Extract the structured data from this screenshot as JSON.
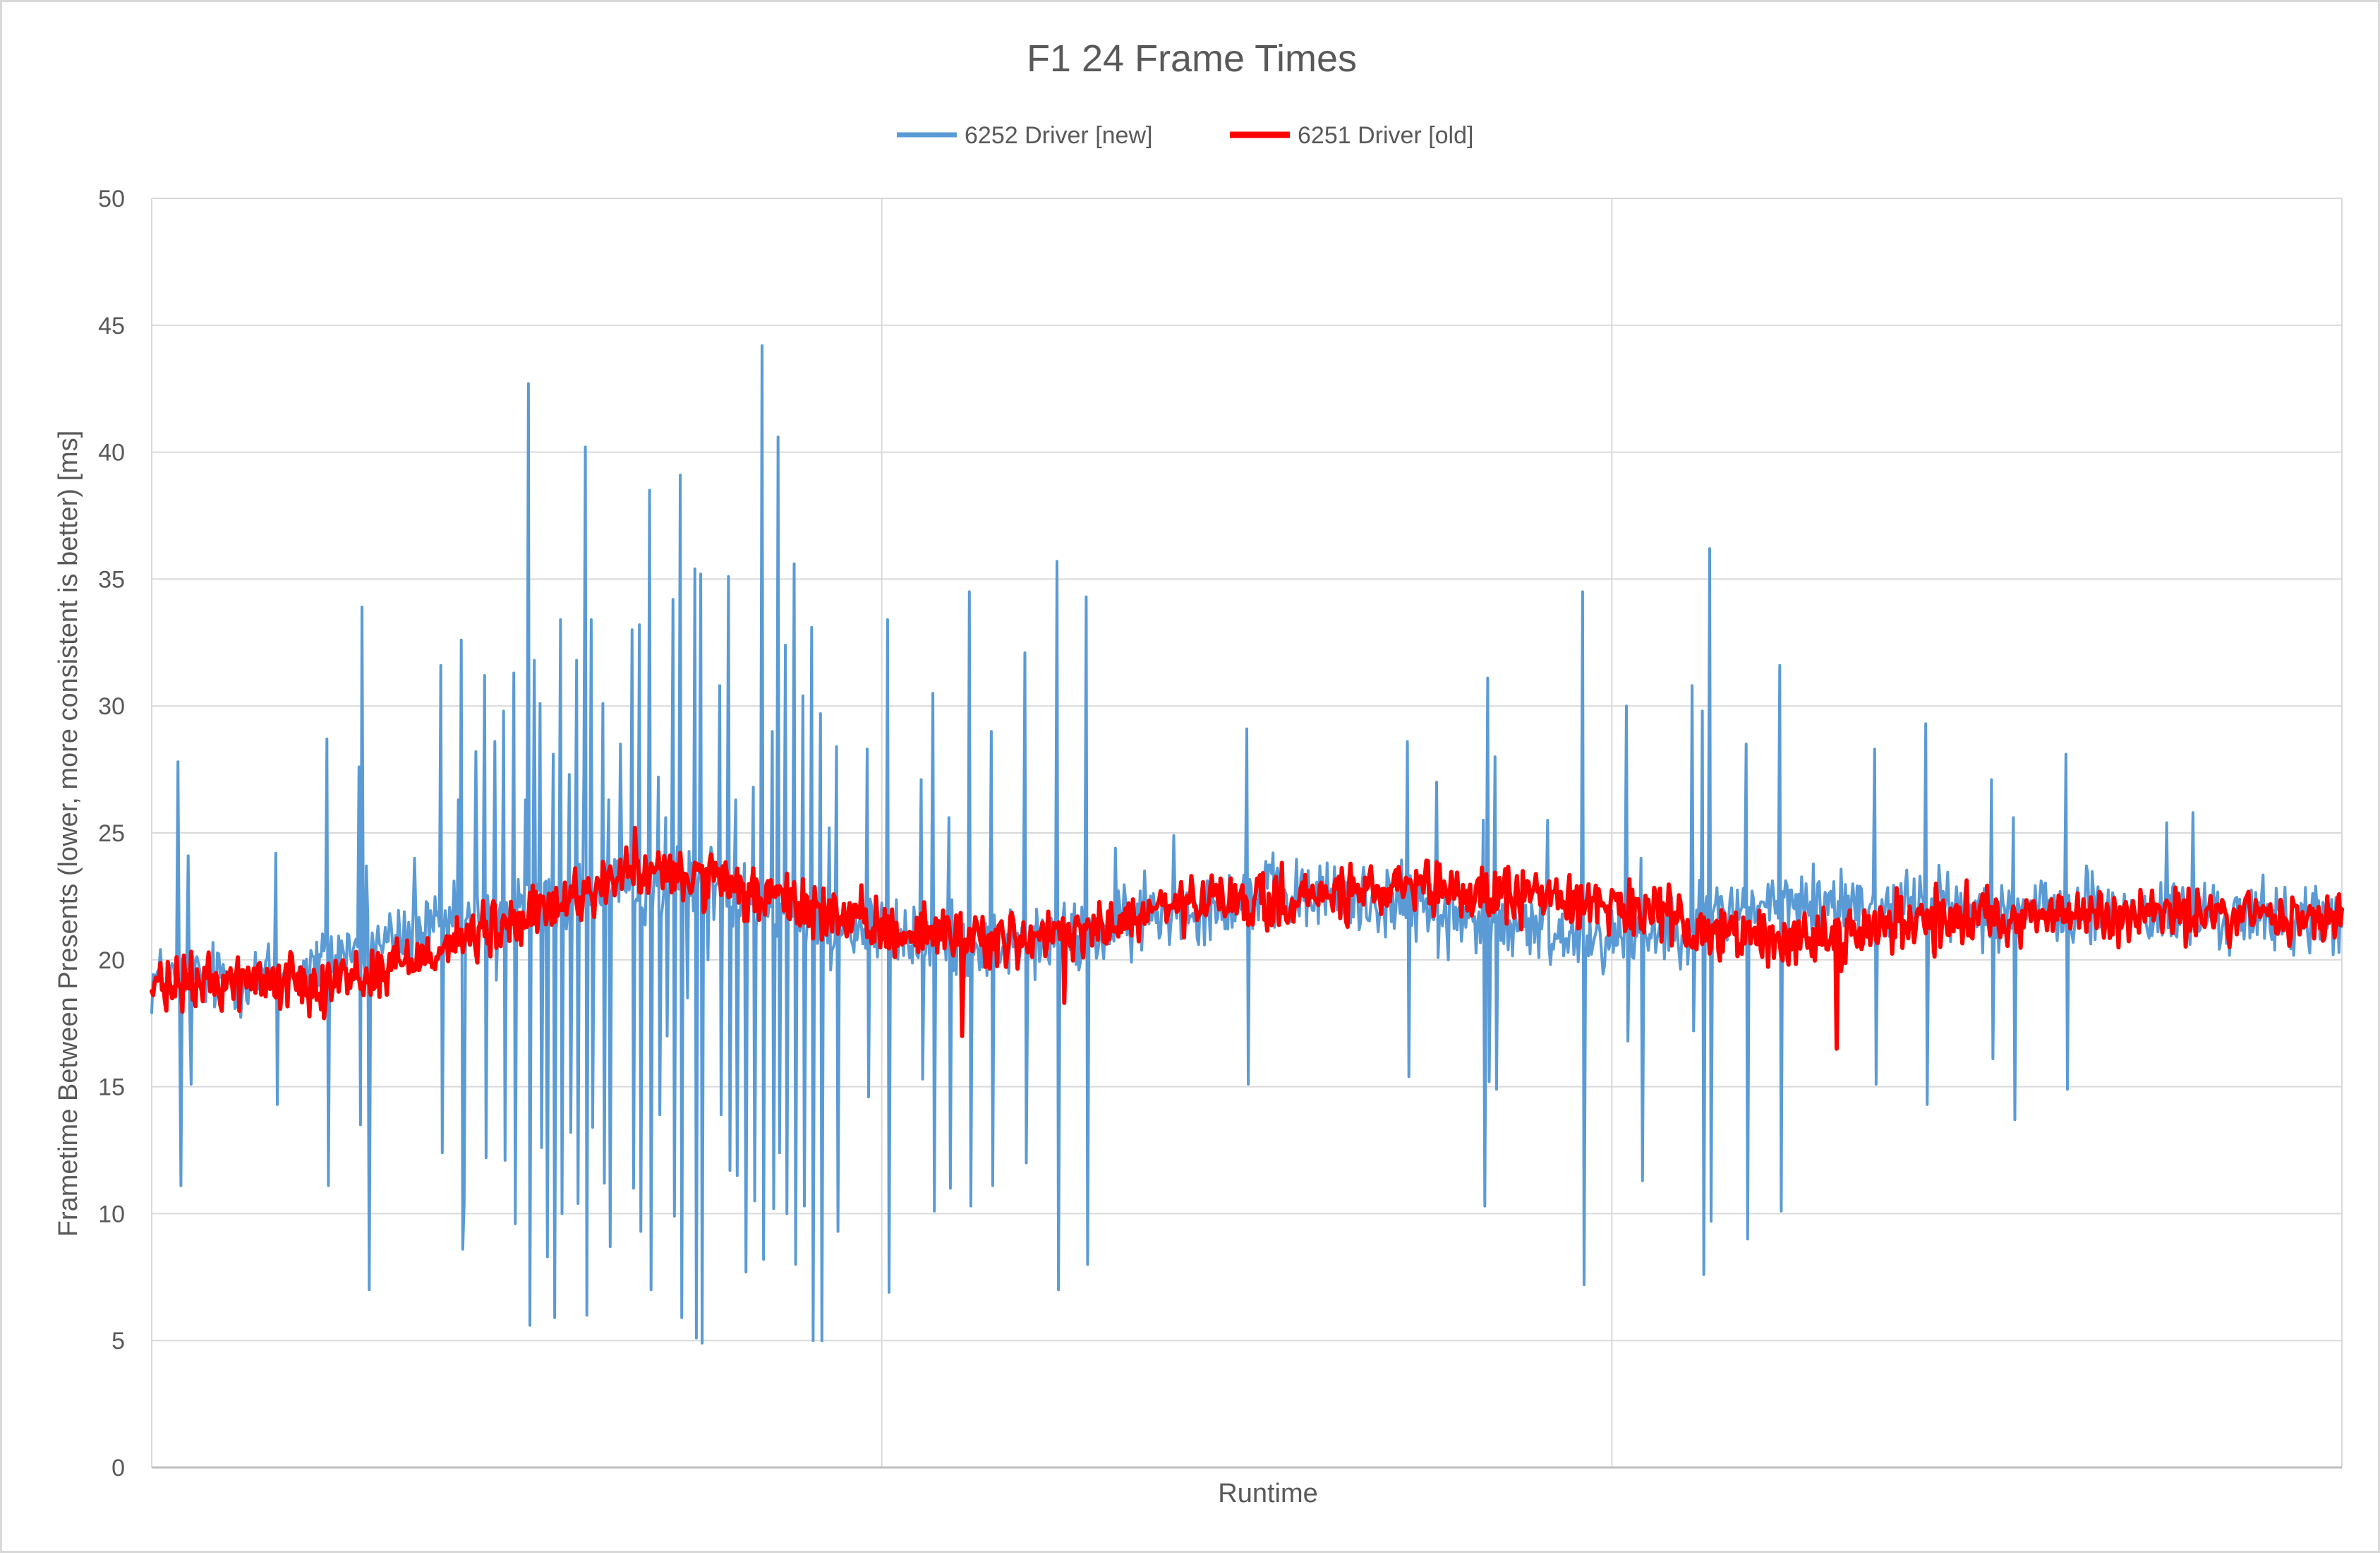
{
  "chart_data": {
    "type": "line",
    "title": "F1 24 Frame Times",
    "xlabel": "Runtime",
    "ylabel": "Frametime Between Presents (lower, more consistent is better) [ms]",
    "ylim": [
      0,
      50
    ],
    "yticks": [
      "0",
      "5",
      "10",
      "15",
      "20",
      "25",
      "30",
      "35",
      "40",
      "45",
      "50"
    ],
    "xlim": [
      0,
      1500
    ],
    "x_gridlines": [
      0,
      500,
      1000,
      1500
    ],
    "grid": true,
    "legend_position": "top",
    "series": [
      {
        "name": "6252 Driver [new]",
        "color": "#5b9bd5",
        "baseline": [
          [
            0,
            19.2
          ],
          [
            100,
            19.4
          ],
          [
            130,
            20.3
          ],
          [
            200,
            21.2
          ],
          [
            300,
            22.6
          ],
          [
            380,
            23.2
          ],
          [
            440,
            21.8
          ],
          [
            520,
            20.8
          ],
          [
            600,
            20.6
          ],
          [
            650,
            21.0
          ],
          [
            700,
            22.0
          ],
          [
            760,
            22.6
          ],
          [
            850,
            22.3
          ],
          [
            900,
            21.6
          ],
          [
            950,
            21.1
          ],
          [
            1000,
            20.9
          ],
          [
            1060,
            21.6
          ],
          [
            1100,
            22.2
          ],
          [
            1200,
            22.2
          ],
          [
            1300,
            21.9
          ],
          [
            1400,
            21.7
          ],
          [
            1500,
            21.6
          ]
        ],
        "spikes": [
          [
            18,
            27.8
          ],
          [
            20,
            11.1
          ],
          [
            25,
            24.1
          ],
          [
            27,
            15.1
          ],
          [
            85,
            24.2
          ],
          [
            86,
            14.3
          ],
          [
            120,
            28.7
          ],
          [
            121,
            11.1
          ],
          [
            142,
            27.6
          ],
          [
            143,
            13.5
          ],
          [
            144,
            33.9
          ],
          [
            147,
            23.7
          ],
          [
            149,
            7.0
          ],
          [
            180,
            24.0
          ],
          [
            198,
            31.6
          ],
          [
            199,
            12.4
          ],
          [
            210,
            26.3
          ],
          [
            212,
            32.6
          ],
          [
            213,
            8.6
          ],
          [
            214,
            10.4
          ],
          [
            222,
            28.2
          ],
          [
            228,
            31.2
          ],
          [
            229,
            12.2
          ],
          [
            235,
            28.6
          ],
          [
            236,
            19.2
          ],
          [
            241,
            29.8
          ],
          [
            242,
            12.1
          ],
          [
            248,
            31.3
          ],
          [
            249,
            9.6
          ],
          [
            256,
            26.3
          ],
          [
            258,
            42.7
          ],
          [
            259,
            5.6
          ],
          [
            262,
            31.8
          ],
          [
            266,
            30.1
          ],
          [
            267,
            12.6
          ],
          [
            270,
            23.1
          ],
          [
            271,
            8.3
          ],
          [
            275,
            28.1
          ],
          [
            276,
            5.9
          ],
          [
            280,
            33.4
          ],
          [
            281,
            10.0
          ],
          [
            286,
            27.3
          ],
          [
            287,
            13.2
          ],
          [
            291,
            31.8
          ],
          [
            292,
            10.4
          ],
          [
            296,
            27.4
          ],
          [
            297,
            40.2
          ],
          [
            298,
            6.0
          ],
          [
            301,
            33.4
          ],
          [
            302,
            13.4
          ],
          [
            309,
            30.1
          ],
          [
            310,
            11.2
          ],
          [
            313,
            26.3
          ],
          [
            314,
            8.7
          ],
          [
            320,
            22.3
          ],
          [
            321,
            28.5
          ],
          [
            328,
            23.2
          ],
          [
            329,
            33.0
          ],
          [
            330,
            11.0
          ],
          [
            334,
            33.2
          ],
          [
            335,
            9.3
          ],
          [
            341,
            38.5
          ],
          [
            342,
            7.0
          ],
          [
            347,
            27.2
          ],
          [
            348,
            13.9
          ],
          [
            352,
            25.6
          ],
          [
            353,
            17.0
          ],
          [
            357,
            34.2
          ],
          [
            358,
            9.9
          ],
          [
            362,
            39.1
          ],
          [
            363,
            5.9
          ],
          [
            367,
            18.5
          ],
          [
            372,
            35.4
          ],
          [
            373,
            5.1
          ],
          [
            376,
            35.2
          ],
          [
            377,
            4.9
          ],
          [
            381,
            20.0
          ],
          [
            389,
            30.8
          ],
          [
            390,
            13.9
          ],
          [
            395,
            35.1
          ],
          [
            396,
            11.7
          ],
          [
            400,
            26.3
          ],
          [
            401,
            11.5
          ],
          [
            406,
            23.8
          ],
          [
            407,
            7.7
          ],
          [
            412,
            26.8
          ],
          [
            413,
            10.5
          ],
          [
            418,
            44.2
          ],
          [
            419,
            8.2
          ],
          [
            425,
            29.0
          ],
          [
            426,
            10.2
          ],
          [
            429,
            40.6
          ],
          [
            430,
            12.4
          ],
          [
            434,
            32.4
          ],
          [
            435,
            10.0
          ],
          [
            440,
            35.6
          ],
          [
            441,
            8.0
          ],
          [
            446,
            30.4
          ],
          [
            447,
            10.3
          ],
          [
            452,
            33.1
          ],
          [
            453,
            5.0
          ],
          [
            458,
            29.7
          ],
          [
            459,
            5.0
          ],
          [
            464,
            25.2
          ],
          [
            465,
            19.6
          ],
          [
            469,
            28.4
          ],
          [
            470,
            9.3
          ],
          [
            480,
            20.6
          ],
          [
            490,
            28.3
          ],
          [
            491,
            14.6
          ],
          [
            504,
            33.4
          ],
          [
            505,
            6.9
          ],
          [
            527,
            27.1
          ],
          [
            528,
            15.3
          ],
          [
            535,
            30.5
          ],
          [
            536,
            10.1
          ],
          [
            546,
            25.6
          ],
          [
            547,
            11.0
          ],
          [
            560,
            34.5
          ],
          [
            561,
            10.3
          ],
          [
            575,
            29.0
          ],
          [
            576,
            11.1
          ],
          [
            598,
            32.1
          ],
          [
            599,
            12.0
          ],
          [
            620,
            35.7
          ],
          [
            621,
            7.0
          ],
          [
            640,
            34.3
          ],
          [
            641,
            8.0
          ],
          [
            660,
            24.4
          ],
          [
            680,
            23.5
          ],
          [
            700,
            24.9
          ],
          [
            750,
            29.1
          ],
          [
            751,
            15.1
          ],
          [
            780,
            21.5
          ],
          [
            800,
            23.7
          ],
          [
            860,
            28.6
          ],
          [
            861,
            15.4
          ],
          [
            880,
            27.0
          ],
          [
            888,
            20.0
          ],
          [
            912,
            25.5
          ],
          [
            913,
            10.3
          ],
          [
            915,
            31.1
          ],
          [
            916,
            15.2
          ],
          [
            920,
            28.0
          ],
          [
            921,
            14.9
          ],
          [
            940,
            21.3
          ],
          [
            956,
            25.5
          ],
          [
            980,
            34.5
          ],
          [
            981,
            7.2
          ],
          [
            985,
            21.6
          ],
          [
            1010,
            30.0
          ],
          [
            1011,
            16.8
          ],
          [
            1020,
            24.0
          ],
          [
            1021,
            11.3
          ],
          [
            1055,
            30.8
          ],
          [
            1056,
            17.2
          ],
          [
            1062,
            29.8
          ],
          [
            1063,
            7.6
          ],
          [
            1067,
            36.2
          ],
          [
            1068,
            9.7
          ],
          [
            1085,
            21.3
          ],
          [
            1092,
            28.5
          ],
          [
            1093,
            9.0
          ],
          [
            1115,
            31.6
          ],
          [
            1116,
            10.1
          ],
          [
            1180,
            28.3
          ],
          [
            1181,
            15.1
          ],
          [
            1215,
            29.3
          ],
          [
            1216,
            14.3
          ],
          [
            1260,
            27.1
          ],
          [
            1261,
            16.1
          ],
          [
            1275,
            25.6
          ],
          [
            1276,
            13.7
          ],
          [
            1311,
            28.1
          ],
          [
            1312,
            14.9
          ],
          [
            1325,
            23.7
          ],
          [
            1375,
            21.6
          ],
          [
            1380,
            25.4
          ],
          [
            1398,
            25.8
          ],
          [
            1399,
            21.1
          ]
        ],
        "noise": 0.7
      },
      {
        "name": "6251 Driver [old]",
        "color": "#ff0000",
        "baseline": [
          [
            0,
            18.9
          ],
          [
            60,
            19.2
          ],
          [
            100,
            19.2
          ],
          [
            150,
            19.4
          ],
          [
            200,
            20.6
          ],
          [
            250,
            21.4
          ],
          [
            300,
            22.8
          ],
          [
            330,
            23.4
          ],
          [
            370,
            23.3
          ],
          [
            400,
            22.7
          ],
          [
            440,
            22.2
          ],
          [
            500,
            21.2
          ],
          [
            550,
            21.0
          ],
          [
            600,
            20.7
          ],
          [
            650,
            21.2
          ],
          [
            700,
            22.1
          ],
          [
            730,
            22.3
          ],
          [
            760,
            22.2
          ],
          [
            800,
            22.5
          ],
          [
            850,
            22.7
          ],
          [
            900,
            22.6
          ],
          [
            960,
            22.5
          ],
          [
            1000,
            22.2
          ],
          [
            1050,
            21.4
          ],
          [
            1100,
            20.8
          ],
          [
            1150,
            20.9
          ],
          [
            1200,
            21.5
          ],
          [
            1250,
            21.8
          ],
          [
            1300,
            21.7
          ],
          [
            1400,
            21.8
          ],
          [
            1500,
            21.6
          ]
        ],
        "spikes": [
          [
            10,
            18.0
          ],
          [
            118,
            17.7
          ],
          [
            331,
            25.2
          ],
          [
            555,
            17.0
          ],
          [
            625,
            18.3
          ],
          [
            1154,
            16.5
          ],
          [
            1222,
            23.0
          ]
        ],
        "noise": 0.55
      }
    ]
  }
}
